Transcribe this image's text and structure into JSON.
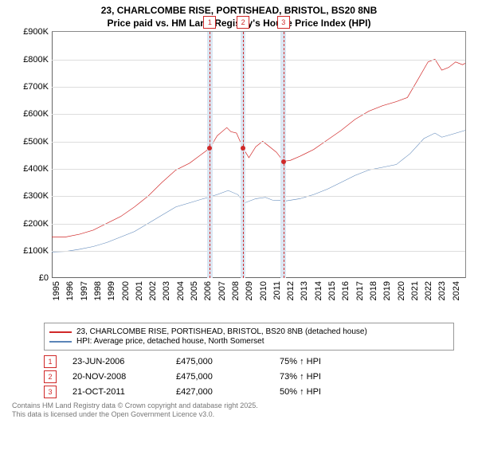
{
  "title_line1": "23, CHARLCOMBE RISE, PORTISHEAD, BRISTOL, BS20 8NB",
  "title_line2": "Price paid vs. HM Land Registry's House Price Index (HPI)",
  "chart": {
    "type": "line",
    "background_color": "#ffffff",
    "grid_color": "#dddddd",
    "axis_color": "#666666",
    "x_years": [
      1995,
      1996,
      1997,
      1998,
      1999,
      2000,
      2001,
      2002,
      2003,
      2004,
      2005,
      2006,
      2007,
      2008,
      2009,
      2010,
      2011,
      2012,
      2013,
      2014,
      2015,
      2016,
      2017,
      2018,
      2019,
      2020,
      2021,
      2022,
      2023,
      2024
    ],
    "xmin": 1995,
    "xmax": 2025,
    "ylim": [
      0,
      900000
    ],
    "ytick_step": 100000,
    "ytick_labels": [
      "£0",
      "£100K",
      "£200K",
      "£300K",
      "£400K",
      "£500K",
      "£600K",
      "£700K",
      "£800K",
      "£900K"
    ],
    "xtick_fontsize": 11,
    "ytick_fontsize": 11,
    "event_band_color": "#dbe6f2",
    "event_line_color": "#d02828",
    "series": [
      {
        "name": "price_paid",
        "color": "#d02828",
        "width": 2,
        "points": [
          [
            1995.0,
            150000
          ],
          [
            1996.0,
            150000
          ],
          [
            1997.0,
            160000
          ],
          [
            1998.0,
            175000
          ],
          [
            1999.0,
            200000
          ],
          [
            2000.0,
            225000
          ],
          [
            2001.0,
            260000
          ],
          [
            2002.0,
            300000
          ],
          [
            2003.0,
            350000
          ],
          [
            2004.0,
            395000
          ],
          [
            2005.0,
            420000
          ],
          [
            2005.8,
            450000
          ],
          [
            2006.47,
            475000
          ],
          [
            2007.0,
            520000
          ],
          [
            2007.7,
            550000
          ],
          [
            2008.0,
            535000
          ],
          [
            2008.4,
            530000
          ],
          [
            2008.88,
            475000
          ],
          [
            2009.3,
            440000
          ],
          [
            2009.8,
            480000
          ],
          [
            2010.3,
            500000
          ],
          [
            2010.8,
            480000
          ],
          [
            2011.3,
            460000
          ],
          [
            2011.81,
            427000
          ],
          [
            2012.3,
            430000
          ],
          [
            2013.0,
            445000
          ],
          [
            2014.0,
            470000
          ],
          [
            2015.0,
            505000
          ],
          [
            2016.0,
            540000
          ],
          [
            2017.0,
            580000
          ],
          [
            2018.0,
            610000
          ],
          [
            2019.0,
            630000
          ],
          [
            2020.0,
            645000
          ],
          [
            2020.8,
            660000
          ],
          [
            2021.5,
            720000
          ],
          [
            2022.3,
            790000
          ],
          [
            2022.8,
            800000
          ],
          [
            2023.3,
            760000
          ],
          [
            2023.8,
            770000
          ],
          [
            2024.3,
            790000
          ],
          [
            2024.8,
            780000
          ],
          [
            2025.0,
            785000
          ]
        ]
      },
      {
        "name": "hpi",
        "color": "#5b85b8",
        "width": 1.5,
        "points": [
          [
            1995.0,
            95000
          ],
          [
            1996.0,
            97000
          ],
          [
            1997.0,
            105000
          ],
          [
            1998.0,
            115000
          ],
          [
            1999.0,
            130000
          ],
          [
            2000.0,
            150000
          ],
          [
            2001.0,
            170000
          ],
          [
            2002.0,
            200000
          ],
          [
            2003.0,
            230000
          ],
          [
            2004.0,
            260000
          ],
          [
            2005.0,
            275000
          ],
          [
            2006.0,
            290000
          ],
          [
            2007.0,
            305000
          ],
          [
            2007.8,
            320000
          ],
          [
            2008.5,
            305000
          ],
          [
            2009.0,
            275000
          ],
          [
            2009.8,
            290000
          ],
          [
            2010.5,
            295000
          ],
          [
            2011.0,
            285000
          ],
          [
            2012.0,
            282000
          ],
          [
            2013.0,
            290000
          ],
          [
            2014.0,
            305000
          ],
          [
            2015.0,
            325000
          ],
          [
            2016.0,
            350000
          ],
          [
            2017.0,
            375000
          ],
          [
            2018.0,
            395000
          ],
          [
            2019.0,
            405000
          ],
          [
            2020.0,
            415000
          ],
          [
            2021.0,
            455000
          ],
          [
            2022.0,
            510000
          ],
          [
            2022.8,
            530000
          ],
          [
            2023.3,
            515000
          ],
          [
            2024.0,
            525000
          ],
          [
            2025.0,
            540000
          ]
        ]
      }
    ],
    "sale_markers": [
      {
        "x": 2006.47,
        "y": 475000
      },
      {
        "x": 2008.88,
        "y": 475000
      },
      {
        "x": 2011.81,
        "y": 427000
      }
    ],
    "event_bands": [
      {
        "start": 2006.3,
        "end": 2006.65
      },
      {
        "start": 2008.7,
        "end": 2009.05
      },
      {
        "start": 2011.6,
        "end": 2012.0
      }
    ],
    "event_markers": [
      {
        "num": "1",
        "x": 2006.47
      },
      {
        "num": "2",
        "x": 2008.88
      },
      {
        "num": "3",
        "x": 2011.81
      }
    ]
  },
  "legend": {
    "items": [
      {
        "label": "23, CHARLCOMBE RISE, PORTISHEAD, BRISTOL, BS20 8NB (detached house)",
        "color": "#d02828"
      },
      {
        "label": "HPI: Average price, detached house, North Somerset",
        "color": "#5b85b8"
      }
    ]
  },
  "events": [
    {
      "num": "1",
      "date": "23-JUN-2006",
      "price": "£475,000",
      "hpi": "75% ↑ HPI"
    },
    {
      "num": "2",
      "date": "20-NOV-2008",
      "price": "£475,000",
      "hpi": "73% ↑ HPI"
    },
    {
      "num": "3",
      "date": "21-OCT-2011",
      "price": "£427,000",
      "hpi": "50% ↑ HPI"
    }
  ],
  "footer_line1": "Contains HM Land Registry data © Crown copyright and database right 2025.",
  "footer_line2": "This data is licensed under the Open Government Licence v3.0."
}
